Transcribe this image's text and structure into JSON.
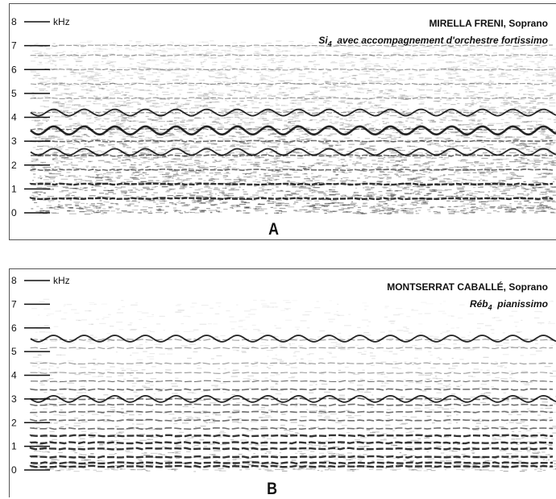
{
  "chart_data": [
    {
      "panel": "A",
      "type": "heatmap",
      "title": "MIRELLA FRENI, Soprano",
      "subtitle_note": "Si",
      "subtitle_sub": "4",
      "subtitle_rest": "  avec accompagnement d'orchestre fortissimo",
      "ylabel": "kHz",
      "ylim": [
        0,
        8
      ],
      "yticks": [
        "0",
        "1",
        "2",
        "3",
        "4",
        "5",
        "6",
        "7",
        "8"
      ],
      "harmonics_khz": [
        0.6,
        1.2,
        1.8,
        2.4,
        3.0,
        3.5,
        4.2,
        4.8,
        5.4,
        6.0,
        6.6,
        7.0
      ],
      "vibrato_bands_khz": [
        2.55,
        3.45,
        4.2
      ],
      "noise_density": "high"
    },
    {
      "panel": "B",
      "type": "heatmap",
      "title": "MONTSERRAT CABALLÉ, Soprano",
      "subtitle_note": "Réb",
      "subtitle_sub": "4",
      "subtitle_rest": "  pianissimo",
      "ylabel": "kHz",
      "ylim": [
        0,
        8
      ],
      "yticks": [
        "0",
        "1",
        "2",
        "3",
        "4",
        "5",
        "6",
        "7",
        "8"
      ],
      "harmonics_khz": [
        0.15,
        0.3,
        0.55,
        0.9,
        1.15,
        1.45,
        1.75,
        2.1,
        2.45,
        2.75,
        3.0,
        3.4,
        3.75,
        4.1,
        4.5,
        5.15,
        5.5
      ],
      "vibrato_bands_khz": [
        3.0,
        5.55
      ],
      "noise_density": "low"
    }
  ],
  "labels": {
    "panel_a": "A",
    "panel_b": "B"
  }
}
